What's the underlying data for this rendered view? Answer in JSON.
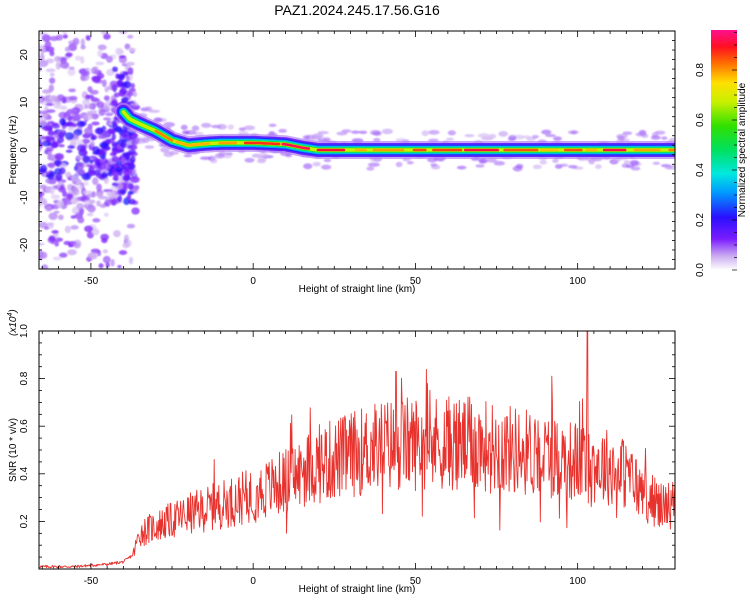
{
  "figure": {
    "title": "PAZ1.2024.245.17.56.G16"
  },
  "chart_data": [
    {
      "type": "heatmap",
      "name": "spectrogram",
      "xlabel": "Height of straight line (km)",
      "ylabel": "Frequency (Hz)",
      "xlim": [
        -66,
        130
      ],
      "ylim": [
        -25,
        25
      ],
      "x_ticks": [
        -50,
        0,
        50,
        100
      ],
      "y_ticks": [
        -20,
        -10,
        0,
        10,
        20
      ],
      "colorbar": {
        "label": "Normalized spectral amplitude",
        "range": [
          0,
          0.96
        ],
        "ticks": [
          0.0,
          0.2,
          0.4,
          0.6,
          0.8
        ],
        "tick_labels": [
          "0.0",
          "0.2",
          "0.4",
          "0.6",
          "0.8"
        ],
        "colormap": "rainbow (white-violet-blue-cyan-green-yellow-red-magenta)"
      },
      "ridge": {
        "description": "dominant frequency track",
        "x": [
          -40,
          -38,
          -35,
          -30,
          -25,
          -20,
          -15,
          -10,
          0,
          10,
          15,
          20,
          30,
          50,
          70,
          100,
          130
        ],
        "y": [
          8,
          6.5,
          5.5,
          4,
          2,
          1,
          1.3,
          1.5,
          1.5,
          1.2,
          0.5,
          0,
          0,
          0,
          0,
          0,
          0
        ]
      }
    },
    {
      "type": "line",
      "name": "snr",
      "xlabel": "Height of straight line (km)",
      "ylabel": "SNR (10 * v/v)",
      "y_multiplier": "(x10",
      "y_multiplier_exp": "4",
      "xlim": [
        -66,
        130
      ],
      "ylim": [
        0,
        1.0
      ],
      "x_ticks": [
        -50,
        0,
        50,
        100
      ],
      "y_ticks": [
        0.2,
        0.4,
        0.6,
        0.8,
        1.0
      ],
      "y_tick_labels": [
        "0.2",
        "0.4",
        "0.6",
        "0.8",
        "1.0"
      ],
      "color": "#e8322d",
      "envelope": {
        "x": [
          -66,
          -55,
          -45,
          -40,
          -37,
          -35,
          -30,
          -20,
          -10,
          0,
          10,
          20,
          30,
          40,
          50,
          60,
          70,
          80,
          90,
          100,
          110,
          115,
          120,
          125,
          130
        ],
        "y": [
          0.01,
          0.01,
          0.02,
          0.03,
          0.06,
          0.15,
          0.18,
          0.23,
          0.27,
          0.31,
          0.37,
          0.44,
          0.48,
          0.52,
          0.53,
          0.53,
          0.52,
          0.5,
          0.48,
          0.45,
          0.43,
          0.4,
          0.32,
          0.27,
          0.27
        ]
      },
      "peaks": [
        {
          "x": -12,
          "y": 0.46
        },
        {
          "x": 44,
          "y": 0.83
        },
        {
          "x": 92,
          "y": 0.81
        },
        {
          "x": 103,
          "y": 1.01
        }
      ]
    }
  ]
}
